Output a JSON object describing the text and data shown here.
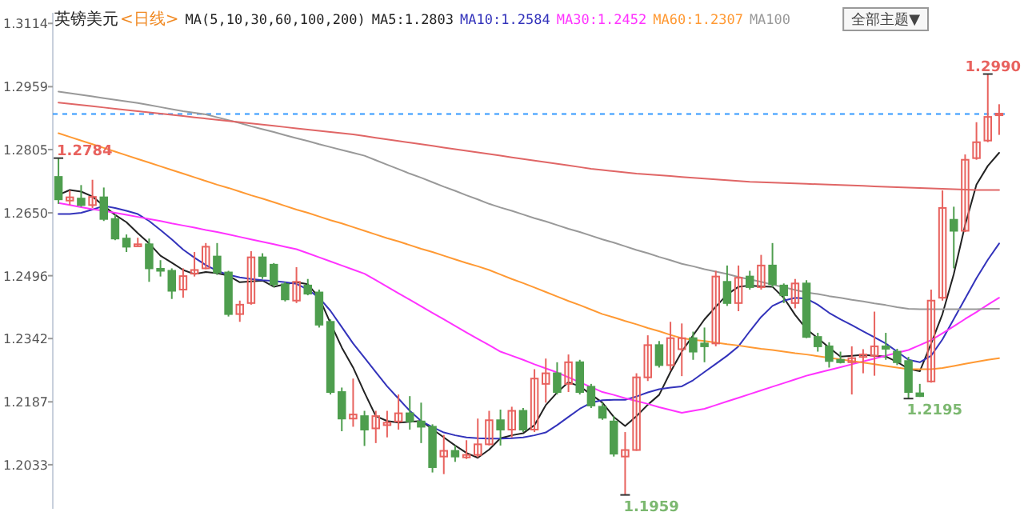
{
  "chart_data": {
    "type": "candlestick",
    "title": "英镑美元",
    "subtitle": "<日线>",
    "legend_title": "MA(5,10,30,60,100,200)",
    "legend": "top",
    "tick_labels": "y",
    "categories": [
      null,
      null,
      null,
      null,
      null,
      null,
      null,
      null,
      null,
      null,
      null,
      null,
      null,
      null,
      null,
      null,
      null,
      null,
      null,
      null,
      null,
      null,
      null,
      null,
      null,
      null,
      null,
      null,
      null,
      null,
      null,
      null,
      null,
      null,
      null,
      null,
      null,
      null,
      null,
      null,
      null,
      null,
      null,
      null,
      null,
      null,
      null,
      null,
      null,
      null,
      null,
      null,
      null,
      null,
      null,
      null,
      null,
      null,
      null,
      null,
      null,
      null,
      null,
      null,
      null,
      null,
      null,
      null,
      null,
      null,
      null,
      null,
      null,
      null,
      null,
      null,
      null,
      null,
      null,
      null,
      null,
      null,
      null,
      null
    ],
    "ylim": [
      1.1925,
      1.314
    ],
    "yticks": [
      1.3114,
      1.2959,
      1.2805,
      {
        "value": 1.265,
        "label": "1.2650"
      },
      1.2496,
      1.2342,
      1.2187,
      1.2033
    ],
    "ohlc": [
      [
        1.2738,
        1.2784,
        1.2672,
        1.2683
      ],
      [
        1.268,
        1.2705,
        1.2669,
        1.2688
      ],
      [
        1.2685,
        1.2718,
        1.2665,
        1.2669
      ],
      [
        1.2669,
        1.2731,
        1.2662,
        1.2689
      ],
      [
        1.2688,
        1.2712,
        1.263,
        1.2635
      ],
      [
        1.2635,
        1.2646,
        1.2583,
        1.2587
      ],
      [
        1.2587,
        1.2597,
        1.2554,
        1.2567
      ],
      [
        1.2568,
        1.2589,
        1.2567,
        1.2573
      ],
      [
        1.2573,
        1.2587,
        1.2481,
        1.2514
      ],
      [
        1.2513,
        1.2534,
        1.2494,
        1.2508
      ],
      [
        1.2508,
        1.2514,
        1.2439,
        1.2459
      ],
      [
        1.2462,
        1.2514,
        1.2442,
        1.2495
      ],
      [
        1.2501,
        1.2554,
        1.2494,
        1.251
      ],
      [
        1.2514,
        1.2576,
        1.2512,
        1.2567
      ],
      [
        1.2543,
        1.2576,
        1.2498,
        1.2504
      ],
      [
        1.2504,
        1.2508,
        1.2396,
        1.2402
      ],
      [
        1.2402,
        1.2435,
        1.2383,
        1.2425
      ],
      [
        1.2429,
        1.2556,
        1.2425,
        1.2541
      ],
      [
        1.2541,
        1.2551,
        1.2488,
        1.2495
      ],
      [
        1.2523,
        1.2527,
        1.2468,
        1.2475
      ],
      [
        1.2475,
        1.2481,
        1.2433,
        1.2438
      ],
      [
        1.2435,
        1.2517,
        1.2429,
        1.2481
      ],
      [
        1.2472,
        1.2488,
        1.2448,
        1.2452
      ],
      [
        1.2455,
        1.2462,
        1.2369,
        1.2376
      ],
      [
        1.2383,
        1.2389,
        1.2205,
        1.2211
      ],
      [
        1.2211,
        1.2222,
        1.2115,
        1.2146
      ],
      [
        1.2146,
        1.2244,
        1.2126,
        1.2156
      ],
      [
        1.2152,
        1.2165,
        1.2079,
        1.2119
      ],
      [
        1.2122,
        1.2165,
        1.2086,
        1.2152
      ],
      [
        1.213,
        1.2165,
        1.21,
        1.2136
      ],
      [
        1.2139,
        1.2205,
        1.2119,
        1.2159
      ],
      [
        1.2159,
        1.2201,
        1.2119,
        1.2139
      ],
      [
        1.2139,
        1.2185,
        1.2086,
        1.2126
      ],
      [
        1.2126,
        1.2132,
        1.2014,
        1.2027
      ],
      [
        1.2053,
        1.2106,
        1.201,
        1.2067
      ],
      [
        1.2067,
        1.208,
        1.204,
        1.2053
      ],
      [
        1.2051,
        1.2093,
        1.2047,
        1.2057
      ],
      [
        1.2057,
        1.2146,
        1.2051,
        1.2083
      ],
      [
        1.2083,
        1.2165,
        1.208,
        1.2142
      ],
      [
        1.2142,
        1.2168,
        1.208,
        1.2119
      ],
      [
        1.2119,
        1.2175,
        1.21,
        1.2165
      ],
      [
        1.2165,
        1.2172,
        1.2113,
        1.2119
      ],
      [
        1.2119,
        1.2267,
        1.2113,
        1.2244
      ],
      [
        1.2231,
        1.2293,
        1.2185,
        1.2257
      ],
      [
        1.2257,
        1.2284,
        1.2205,
        1.2211
      ],
      [
        1.2231,
        1.2303,
        1.2211,
        1.2284
      ],
      [
        1.2284,
        1.229,
        1.2205,
        1.2211
      ],
      [
        1.2224,
        1.2231,
        1.2172,
        1.2178
      ],
      [
        1.2175,
        1.2185,
        1.2143,
        1.2148
      ],
      [
        1.2139,
        1.2152,
        1.2053,
        1.206
      ],
      [
        1.2053,
        1.2113,
        1.1959,
        1.2069
      ],
      [
        1.2069,
        1.2257,
        1.2067,
        1.2247
      ],
      [
        1.2247,
        1.235,
        1.2238,
        1.2326
      ],
      [
        1.2326,
        1.2336,
        1.2271,
        1.2277
      ],
      [
        1.2277,
        1.2383,
        1.2264,
        1.2343
      ],
      [
        1.2316,
        1.2379,
        1.225,
        1.2343
      ],
      [
        1.2343,
        1.2359,
        1.229,
        1.231
      ],
      [
        1.233,
        1.2369,
        1.2284,
        1.2323
      ],
      [
        1.233,
        1.2508,
        1.2323,
        1.2494
      ],
      [
        1.2481,
        1.2521,
        1.2422,
        1.2429
      ],
      [
        1.2429,
        1.2521,
        1.2409,
        1.2491
      ],
      [
        1.2494,
        1.2508,
        1.2462,
        1.2468
      ],
      [
        1.2468,
        1.2547,
        1.2462,
        1.2521
      ],
      [
        1.2521,
        1.2576,
        1.2468,
        1.2475
      ],
      [
        1.2472,
        1.2477,
        1.2429,
        1.2448
      ],
      [
        1.2429,
        1.2488,
        1.2416,
        1.2477
      ],
      [
        1.2477,
        1.2485,
        1.2343,
        1.2346
      ],
      [
        1.2346,
        1.2356,
        1.231,
        1.2323
      ],
      [
        1.2323,
        1.2333,
        1.2271,
        1.2287
      ],
      [
        1.229,
        1.231,
        1.2281,
        1.2284
      ],
      [
        1.2284,
        1.2323,
        1.2205,
        1.2294
      ],
      [
        1.2297,
        1.2316,
        1.2257,
        1.2303
      ],
      [
        1.23,
        1.2408,
        1.2251,
        1.2323
      ],
      [
        1.2323,
        1.2356,
        1.229,
        1.2317
      ],
      [
        1.231,
        1.2317,
        1.2277,
        1.2284
      ],
      [
        1.2287,
        1.2297,
        1.2195,
        1.2211
      ],
      [
        1.2208,
        1.2231,
        1.2199,
        1.2201
      ],
      [
        1.2237,
        1.2462,
        1.2234,
        1.2435
      ],
      [
        1.2442,
        1.2705,
        1.2435,
        1.2662
      ],
      [
        1.2633,
        1.2665,
        1.2514,
        1.2606
      ],
      [
        1.2606,
        1.2793,
        1.2603,
        1.278
      ],
      [
        1.2784,
        1.2872,
        1.278,
        1.2823
      ],
      [
        1.2827,
        1.299,
        1.2823,
        1.2885
      ],
      [
        1.2889,
        1.2916,
        1.2841,
        1.2893
      ]
    ],
    "series": [
      {
        "name": "MA5:1.2803",
        "type": "line",
        "color": "#222222",
        "values": [
          1.2694,
          1.2706,
          1.2702,
          1.269,
          1.2667,
          1.2645,
          1.2627,
          1.26,
          1.2575,
          1.2545,
          1.2528,
          1.251,
          1.25,
          1.2505,
          1.2502,
          1.2496,
          1.248,
          1.2482,
          1.2484,
          1.2469,
          1.2475,
          1.248,
          1.2475,
          1.2442,
          1.238,
          1.232,
          1.2271,
          1.221,
          1.2152,
          1.214,
          1.2136,
          1.2138,
          1.214,
          1.212,
          1.21,
          1.208,
          1.2062,
          1.205,
          1.207,
          1.2098,
          1.2105,
          1.211,
          1.213,
          1.2179,
          1.221,
          1.2235,
          1.2225,
          1.2205,
          1.2185,
          1.215,
          1.2128,
          1.2152,
          1.218,
          1.2204,
          1.226,
          1.231,
          1.235,
          1.2389,
          1.242,
          1.245,
          1.2469,
          1.2472,
          1.247,
          1.2469,
          1.2442,
          1.24,
          1.2365,
          1.2343,
          1.232,
          1.2298,
          1.23,
          1.2302,
          1.23,
          1.2298,
          1.2285,
          1.2268,
          1.2262,
          1.233,
          1.2402,
          1.25,
          1.262,
          1.2719,
          1.2765,
          1.2797
        ]
      },
      {
        "name": "MA10:1.2584",
        "type": "line",
        "color": "#3333bb",
        "values": [
          1.2647,
          1.2647,
          1.265,
          1.2658,
          1.2667,
          1.2662,
          1.2655,
          1.2647,
          1.263,
          1.2608,
          1.2585,
          1.256,
          1.254,
          1.2522,
          1.2508,
          1.2498,
          1.2492,
          1.2488,
          1.2485,
          1.2483,
          1.248,
          1.2476,
          1.2462,
          1.2442,
          1.241,
          1.237,
          1.233,
          1.2295,
          1.226,
          1.2225,
          1.2195,
          1.2165,
          1.214,
          1.2125,
          1.2112,
          1.2105,
          1.21,
          1.2098,
          1.2097,
          1.2097,
          1.2098,
          1.21,
          1.2105,
          1.2112,
          1.213,
          1.215,
          1.217,
          1.2185,
          1.2191,
          1.2192,
          1.2192,
          1.22,
          1.221,
          1.2218,
          1.2222,
          1.2225,
          1.224,
          1.226,
          1.228,
          1.23,
          1.2323,
          1.236,
          1.2395,
          1.2422,
          1.2435,
          1.2442,
          1.244,
          1.2425,
          1.2405,
          1.2389,
          1.2375,
          1.236,
          1.2345,
          1.233,
          1.231,
          1.229,
          1.2284,
          1.23,
          1.234,
          1.239,
          1.244,
          1.249,
          1.2535,
          1.2575
        ]
      },
      {
        "name": "MA30:1.2452",
        "type": "line",
        "color": "#ff33ff",
        "values": [
          1.2674,
          1.2669,
          1.2664,
          1.2659,
          1.2655,
          1.265,
          1.2645,
          1.264,
          1.2635,
          1.263,
          1.2624,
          1.2619,
          1.2614,
          1.2608,
          1.2603,
          1.2597,
          1.2591,
          1.2585,
          1.2579,
          1.2573,
          1.2567,
          1.2561,
          1.2551,
          1.2541,
          1.2531,
          1.2521,
          1.2511,
          1.2501,
          1.2485,
          1.2469,
          1.2453,
          1.2437,
          1.2421,
          1.2405,
          1.2389,
          1.2373,
          1.2357,
          1.2341,
          1.2326,
          1.231,
          1.23,
          1.229,
          1.2279,
          1.2269,
          1.2259,
          1.2247,
          1.2235,
          1.2223,
          1.2211,
          1.2204,
          1.2196,
          1.2189,
          1.2182,
          1.2174,
          1.2167,
          1.216,
          1.2165,
          1.217,
          1.2179,
          1.2188,
          1.2197,
          1.2206,
          1.2215,
          1.2224,
          1.2233,
          1.2242,
          1.2251,
          1.2258,
          1.2265,
          1.2272,
          1.2279,
          1.2286,
          1.2293,
          1.23,
          1.2307,
          1.2314,
          1.2326,
          1.2338,
          1.2355,
          1.2372,
          1.239,
          1.2407,
          1.2425,
          1.2442
        ]
      },
      {
        "name": "MA60:1.2307",
        "type": "line",
        "color": "#ff9933",
        "values": [
          1.2845,
          1.2836,
          1.2827,
          1.2818,
          1.2809,
          1.28,
          1.2791,
          1.2782,
          1.2773,
          1.2764,
          1.2755,
          1.2746,
          1.2737,
          1.2728,
          1.2719,
          1.2711,
          1.2702,
          1.2693,
          1.2685,
          1.2676,
          1.2667,
          1.2658,
          1.265,
          1.2641,
          1.2632,
          1.2624,
          1.2615,
          1.2606,
          1.2597,
          1.2588,
          1.258,
          1.2571,
          1.2562,
          1.2554,
          1.2545,
          1.2536,
          1.2527,
          1.2519,
          1.251,
          1.2499,
          1.2488,
          1.2478,
          1.2467,
          1.2456,
          1.2445,
          1.2434,
          1.2424,
          1.2413,
          1.2402,
          1.2394,
          1.2385,
          1.2377,
          1.2368,
          1.236,
          1.2351,
          1.2343,
          1.2339,
          1.2336,
          1.2332,
          1.2328,
          1.2325,
          1.2321,
          1.2317,
          1.2314,
          1.231,
          1.2306,
          1.2303,
          1.2299,
          1.2295,
          1.2291,
          1.2287,
          1.2283,
          1.2279,
          1.2275,
          1.2271,
          1.2267,
          1.2267,
          1.2267,
          1.227,
          1.2275,
          1.228,
          1.2285,
          1.229,
          1.2294
        ]
      },
      {
        "name": "MA100",
        "type": "line",
        "color": "#999999",
        "values": [
          1.2947,
          1.2943,
          1.2939,
          1.2935,
          1.2931,
          1.2927,
          1.2923,
          1.2919,
          1.2914,
          1.2909,
          1.2904,
          1.2899,
          1.2895,
          1.2891,
          1.2884,
          1.2877,
          1.287,
          1.2862,
          1.2855,
          1.2848,
          1.284,
          1.2833,
          1.2826,
          1.2818,
          1.2811,
          1.2804,
          1.2797,
          1.279,
          1.2779,
          1.2768,
          1.2757,
          1.2746,
          1.2736,
          1.2725,
          1.2714,
          1.2704,
          1.2693,
          1.2683,
          1.2672,
          1.2663,
          1.2655,
          1.2646,
          1.2637,
          1.2629,
          1.262,
          1.2611,
          1.2603,
          1.2594,
          1.2585,
          1.2577,
          1.2568,
          1.2559,
          1.2551,
          1.2542,
          1.2534,
          1.2525,
          1.2519,
          1.2512,
          1.2506,
          1.25,
          1.2493,
          1.2487,
          1.2481,
          1.2474,
          1.2468,
          1.2461,
          1.2455,
          1.2451,
          1.2446,
          1.2442,
          1.2437,
          1.2433,
          1.2428,
          1.2424,
          1.2419,
          1.2415,
          1.2414,
          1.2414,
          1.2414,
          1.2414,
          1.2414,
          1.2414,
          1.2415,
          1.2415
        ]
      },
      {
        "type": "line",
        "color": "#e06666",
        "values": [
          1.292,
          1.2917,
          1.2914,
          1.2911,
          1.2908,
          1.2905,
          1.2902,
          1.2899,
          1.2896,
          1.2893,
          1.289,
          1.2887,
          1.2884,
          1.2881,
          1.2878,
          1.2875,
          1.2872,
          1.2869,
          1.2866,
          1.2863,
          1.286,
          1.2857,
          1.2854,
          1.2851,
          1.2848,
          1.2845,
          1.2842,
          1.2838,
          1.2834,
          1.283,
          1.2826,
          1.2822,
          1.2818,
          1.2814,
          1.281,
          1.2806,
          1.2802,
          1.2798,
          1.2794,
          1.279,
          1.2786,
          1.2782,
          1.2778,
          1.2774,
          1.277,
          1.2766,
          1.2762,
          1.2758,
          1.2755,
          1.2752,
          1.2749,
          1.2746,
          1.2744,
          1.2742,
          1.274,
          1.2738,
          1.2736,
          1.2734,
          1.2732,
          1.273,
          1.2728,
          1.2726,
          1.2725,
          1.2724,
          1.2723,
          1.2722,
          1.2721,
          1.272,
          1.2719,
          1.2718,
          1.2717,
          1.2716,
          1.2715,
          1.2714,
          1.2713,
          1.2712,
          1.2711,
          1.271,
          1.2709,
          1.2708,
          1.2707,
          1.2706,
          1.2706,
          1.2706
        ]
      }
    ],
    "ref_lines": [
      {
        "axis": "y",
        "value": 1.2892,
        "color": "#3399ff",
        "line_style": "dashed"
      }
    ],
    "annotations": [
      "1.2784",
      {
        "text": "1.2990",
        "y": 1.299
      },
      "1.1959",
      "1.2195",
      "全部主题▼"
    ]
  }
}
